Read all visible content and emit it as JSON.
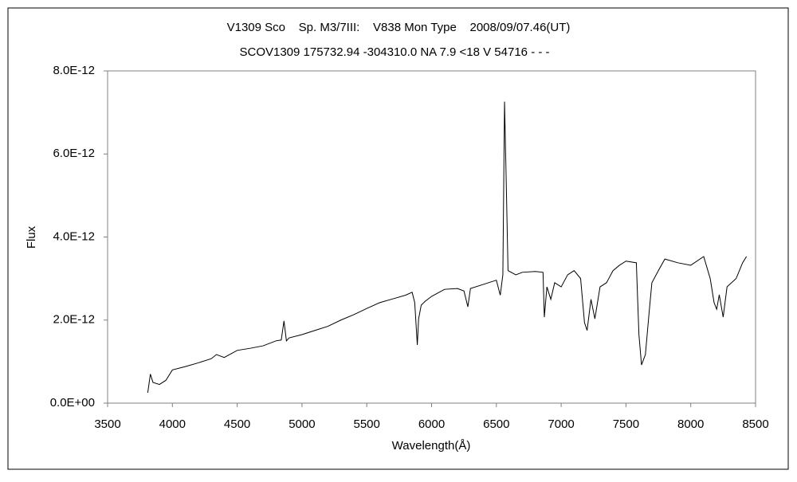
{
  "chart_data": {
    "type": "line",
    "title": "V1309 Sco    Sp. M3/7III:    V838 Mon Type    2008/09/07.46(UT)",
    "subtitle": "SCOV1309 175732.94 -304310.0 NA 7.9 <18 V 54716 - - -",
    "xlabel": "Wavelength(Å)",
    "ylabel": "Flux",
    "color": "#000000",
    "x": [
      3810,
      3830,
      3850,
      3900,
      3950,
      4000,
      4100,
      4200,
      4300,
      4340,
      4400,
      4500,
      4600,
      4700,
      4800,
      4840,
      4861,
      4880,
      4900,
      5000,
      5100,
      5200,
      5300,
      5400,
      5500,
      5600,
      5700,
      5800,
      5850,
      5870,
      5890,
      5900,
      5920,
      5950,
      6000,
      6100,
      6200,
      6250,
      6280,
      6300,
      6400,
      6500,
      6530,
      6550,
      6563,
      6575,
      6590,
      6650,
      6700,
      6800,
      6860,
      6870,
      6890,
      6920,
      6950,
      7000,
      7050,
      7100,
      7150,
      7180,
      7200,
      7230,
      7260,
      7300,
      7350,
      7400,
      7450,
      7500,
      7580,
      7600,
      7620,
      7650,
      7680,
      7700,
      7750,
      7800,
      7900,
      8000,
      8100,
      8150,
      8180,
      8200,
      8220,
      8250,
      8280,
      8350,
      8400,
      8430
    ],
    "values": [
      2.5e-13,
      7e-13,
      5e-13,
      4.5e-13,
      5.5e-13,
      8e-13,
      8.8e-13,
      9.7e-13,
      1.07e-12,
      1.17e-12,
      1.1e-12,
      1.27e-12,
      1.32e-12,
      1.38e-12,
      1.5e-12,
      1.52e-12,
      1.98e-12,
      1.5e-12,
      1.57e-12,
      1.65e-12,
      1.75e-12,
      1.85e-12,
      2e-12,
      2.13e-12,
      2.28e-12,
      2.42e-12,
      2.51e-12,
      2.6e-12,
      2.67e-12,
      2.42e-12,
      1.4e-12,
      2.03e-12,
      2.36e-12,
      2.45e-12,
      2.57e-12,
      2.74e-12,
      2.76e-12,
      2.7e-12,
      2.32e-12,
      2.76e-12,
      2.86e-12,
      2.96e-12,
      2.6e-12,
      3.09e-12,
      7.26e-12,
      5.49e-12,
      3.19e-12,
      3.09e-12,
      3.15e-12,
      3.17e-12,
      3.15e-12,
      2.07e-12,
      2.8e-12,
      2.5e-12,
      2.9e-12,
      2.8e-12,
      3.09e-12,
      3.19e-12,
      3e-12,
      1.94e-12,
      1.75e-12,
      2.5e-12,
      2.03e-12,
      2.8e-12,
      2.9e-12,
      3.19e-12,
      3.32e-12,
      3.42e-12,
      3.38e-12,
      1.65e-12,
      9.2e-13,
      1.17e-12,
      2.23e-12,
      2.9e-12,
      3.19e-12,
      3.47e-12,
      3.38e-12,
      3.32e-12,
      3.53e-12,
      3e-12,
      2.42e-12,
      2.26e-12,
      2.61e-12,
      2.07e-12,
      2.8e-12,
      3e-12,
      3.38e-12,
      3.53e-12
    ],
    "xlim": [
      3500,
      8500
    ],
    "xticks": [
      3500,
      4000,
      4500,
      5000,
      5500,
      6000,
      6500,
      7000,
      7500,
      8000,
      8500
    ],
    "ylim": [
      0,
      8e-12
    ],
    "yticks": [
      {
        "value": 0,
        "label": "0.0E+00"
      },
      {
        "value": 2e-12,
        "label": "2.0E-12"
      },
      {
        "value": 4e-12,
        "label": "4.0E-12"
      },
      {
        "value": 6e-12,
        "label": "6.0E-12"
      },
      {
        "value": 8e-12,
        "label": "8.0E-12"
      }
    ]
  }
}
